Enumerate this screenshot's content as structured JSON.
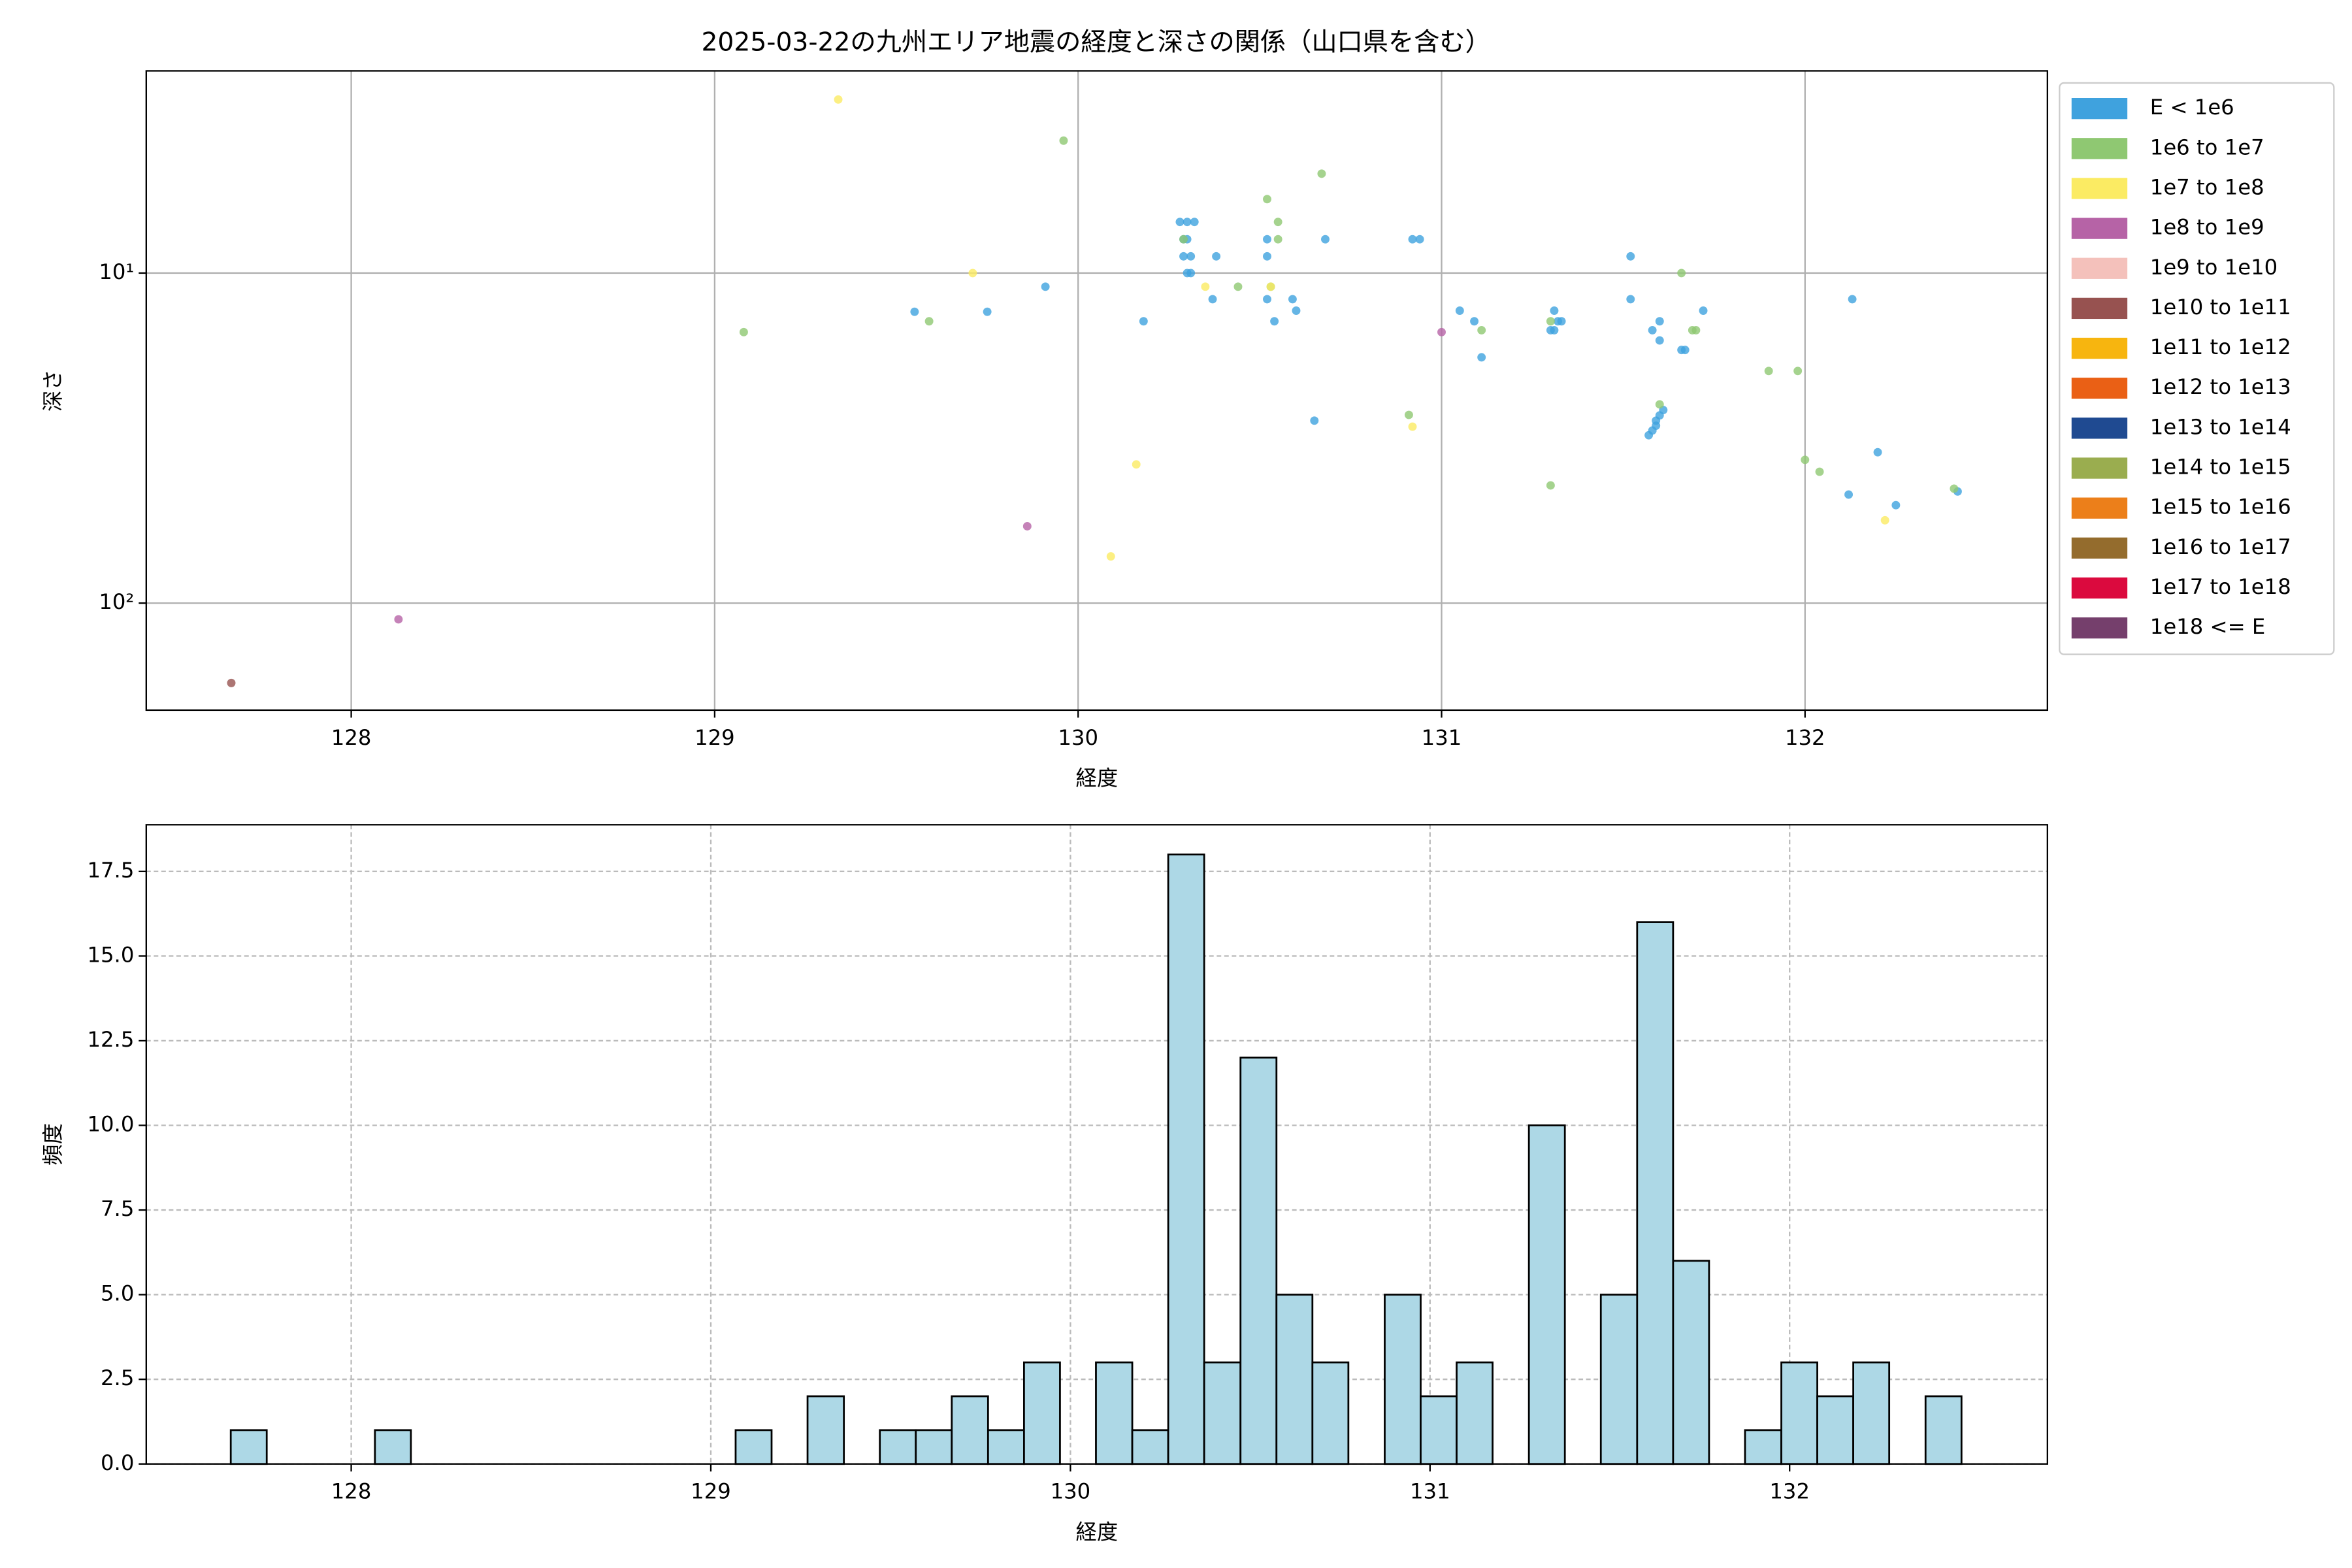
{
  "chart_data": [
    {
      "type": "scatter",
      "title": "2025-03-22の九州エリア地震の経度と深さの関係（山口県を含む）",
      "xlabel": "経度",
      "ylabel": "深さ",
      "xlim": [
        127.436,
        132.667
      ],
      "xticks": [
        128,
        129,
        130,
        131,
        132
      ],
      "ylim": [
        2.44,
        211
      ],
      "yscale": "log",
      "yinvert": true,
      "yticks": [
        {
          "value": 10,
          "label": "10¹"
        },
        {
          "value": 100,
          "label": "10²"
        }
      ],
      "grid": true,
      "grid_linestyle": "solid",
      "legend": "outside right",
      "series": [
        {
          "name": "E < 1e6",
          "color": "#3fa2de",
          "x": [
            129.55,
            129.75,
            129.91,
            130.18,
            130.28,
            130.3,
            130.32,
            130.29,
            130.3,
            130.29,
            130.31,
            130.3,
            130.31,
            130.37,
            130.38,
            130.52,
            130.52,
            130.52,
            130.54,
            130.59,
            130.6,
            130.65,
            130.68,
            130.92,
            130.94,
            131.05,
            131.09,
            131.11,
            131.31,
            131.32,
            131.3,
            131.31,
            131.33,
            131.52,
            131.52,
            131.58,
            131.6,
            131.6,
            131.57,
            131.58,
            131.59,
            131.6,
            131.61,
            131.59,
            131.72,
            131.66,
            131.67,
            132.13,
            132.2,
            132.12,
            132.25,
            132.42
          ],
          "values": [
            13.1,
            13.1,
            11.0,
            14.0,
            7.0,
            7.0,
            7.0,
            7.9,
            7.9,
            8.9,
            8.9,
            10,
            10,
            12.0,
            8.9,
            7.9,
            8.9,
            12.0,
            14.0,
            12.0,
            13.0,
            28.0,
            7.9,
            7.9,
            7.9,
            13.0,
            14.0,
            18.0,
            13.0,
            14.0,
            14.9,
            14.9,
            14.0,
            8.9,
            12.0,
            14.9,
            14.0,
            16.0,
            31,
            30,
            29,
            27,
            26,
            28,
            13.0,
            17.1,
            17.1,
            12.0,
            34.9,
            46.9,
            50.5,
            45.9
          ]
        },
        {
          "name": "1e6 to 1e7",
          "color": "#8fc872",
          "x": [
            129.08,
            129.59,
            129.96,
            130.29,
            130.44,
            130.52,
            130.55,
            130.55,
            130.53,
            130.67,
            130.91,
            131.11,
            131.3,
            131.3,
            131.66,
            131.69,
            131.7,
            131.6,
            131.9,
            131.98,
            132.0,
            132.04,
            132.41
          ],
          "values": [
            15.1,
            14.0,
            3.97,
            7.9,
            11.0,
            5.97,
            7.0,
            7.9,
            11.0,
            5.0,
            26.9,
            14.9,
            14.0,
            44,
            10,
            14.9,
            14.9,
            25.0,
            19.8,
            19.8,
            36.8,
            40,
            45
          ]
        },
        {
          "name": "1e7 to 1e8",
          "color": "#fbeb63",
          "x": [
            129.34,
            129.71,
            130.35,
            130.16,
            130.09,
            130.53,
            130.92,
            132.22
          ],
          "values": [
            2.98,
            10,
            11.0,
            38.0,
            72.2,
            11,
            29.2,
            56.1
          ]
        },
        {
          "name": "1e8 to 1e9",
          "color": "#b663a6",
          "x": [
            129.86,
            128.13,
            131.0
          ],
          "values": [
            58.5,
            112,
            15.1
          ]
        },
        {
          "name": "1e9 to 1e10",
          "color": "#f4c1bb",
          "x": [],
          "values": []
        },
        {
          "name": "1e10 to 1e11",
          "color": "#975250",
          "x": [
            127.67
          ],
          "values": [
            174.6
          ]
        },
        {
          "name": "1e11 to 1e12",
          "color": "#f7b50f",
          "x": [],
          "values": []
        },
        {
          "name": "1e12 to 1e13",
          "color": "#ea6015",
          "x": [],
          "values": []
        },
        {
          "name": "1e13 to 1e14",
          "color": "#1f4a91",
          "x": [],
          "values": []
        },
        {
          "name": "1e14 to 1e15",
          "color": "#9aad4f",
          "x": [],
          "values": []
        },
        {
          "name": "1e15 to 1e16",
          "color": "#ec7f1a",
          "x": [],
          "values": []
        },
        {
          "name": "1e16 to 1e17",
          "color": "#946c2d",
          "x": [],
          "values": []
        },
        {
          "name": "1e17 to 1e18",
          "color": "#db0a3e",
          "x": [],
          "values": []
        },
        {
          "name": "1e18 <= E",
          "color": "#753f6c",
          "x": [],
          "values": []
        }
      ]
    },
    {
      "type": "histogram",
      "xlabel": "経度",
      "ylabel": "頻度",
      "color": "#add8e6",
      "edgecolor": "#000000",
      "xlim": [
        127.43,
        132.717
      ],
      "xticks": [
        128,
        129,
        130,
        131,
        132
      ],
      "ylim": [
        0,
        18.88
      ],
      "yticks": [
        {
          "value": 0,
          "label": "0.0"
        },
        2.5,
        {
          "value": 5,
          "label": "5.0"
        },
        7.5,
        {
          "value": 10,
          "label": "10.0"
        },
        12.5,
        {
          "value": 15,
          "label": "15.0"
        },
        17.5
      ],
      "grid": true,
      "grid_linestyle": "dashed",
      "bins": [
        127.665,
        127.765,
        127.866,
        127.966,
        128.066,
        128.166,
        128.267,
        128.367,
        128.467,
        128.567,
        128.668,
        128.768,
        128.868,
        128.969,
        129.069,
        129.169,
        129.269,
        129.37,
        129.47,
        129.57,
        129.67,
        129.771,
        129.871,
        129.971,
        130.071,
        130.172,
        130.272,
        130.372,
        130.473,
        130.573,
        130.673,
        130.773,
        130.874,
        130.974,
        131.074,
        131.174,
        131.275,
        131.375,
        131.475,
        131.576,
        131.676,
        131.776,
        131.876,
        131.977,
        132.077,
        132.177,
        132.277,
        132.378,
        132.478
      ],
      "values": [
        1,
        0,
        0,
        0,
        1,
        0,
        0,
        0,
        0,
        0,
        0,
        0,
        0,
        0,
        1,
        0,
        2,
        0,
        1,
        1,
        2,
        1,
        3,
        0,
        3,
        1,
        18,
        3,
        12,
        5,
        3,
        0,
        5,
        2,
        3,
        0,
        10,
        0,
        5,
        16,
        6,
        0,
        1,
        3,
        2,
        3,
        0,
        2
      ]
    }
  ]
}
